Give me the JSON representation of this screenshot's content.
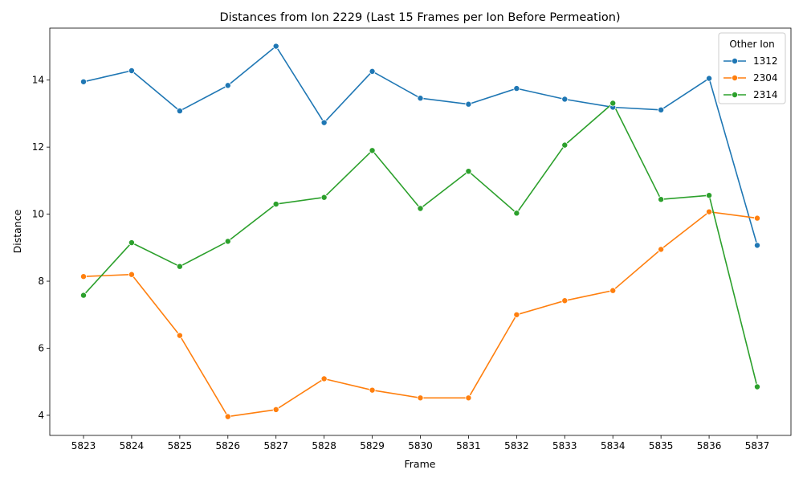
{
  "chart_data": {
    "type": "line",
    "title": "Distances from Ion 2229 (Last 15 Frames per Ion Before Permeation)",
    "xlabel": "Frame",
    "ylabel": "Distance",
    "x": [
      5823,
      5824,
      5825,
      5826,
      5827,
      5828,
      5829,
      5830,
      5831,
      5832,
      5833,
      5834,
      5835,
      5836,
      5837
    ],
    "yticks": [
      4,
      6,
      8,
      10,
      12,
      14
    ],
    "ylim": [
      3.4,
      15.55
    ],
    "grid": false,
    "legend": {
      "title": "Other Ion",
      "placement": "top-right"
    },
    "series": [
      {
        "name": "1312",
        "color": "#1f77b4",
        "values": [
          13.95,
          14.28,
          13.08,
          13.84,
          15.01,
          12.73,
          14.26,
          13.46,
          13.28,
          13.75,
          13.43,
          13.19,
          13.11,
          14.05,
          9.07
        ]
      },
      {
        "name": "2304",
        "color": "#ff7f0e",
        "values": [
          8.14,
          8.2,
          6.38,
          3.96,
          4.17,
          5.09,
          4.75,
          4.52,
          4.52,
          7.0,
          7.42,
          7.72,
          8.95,
          10.07,
          9.88
        ]
      },
      {
        "name": "2314",
        "color": "#2ca02c",
        "values": [
          7.58,
          9.15,
          8.44,
          9.19,
          10.3,
          10.5,
          11.9,
          10.17,
          11.28,
          10.03,
          12.06,
          13.31,
          10.44,
          10.56,
          4.85
        ]
      }
    ]
  }
}
